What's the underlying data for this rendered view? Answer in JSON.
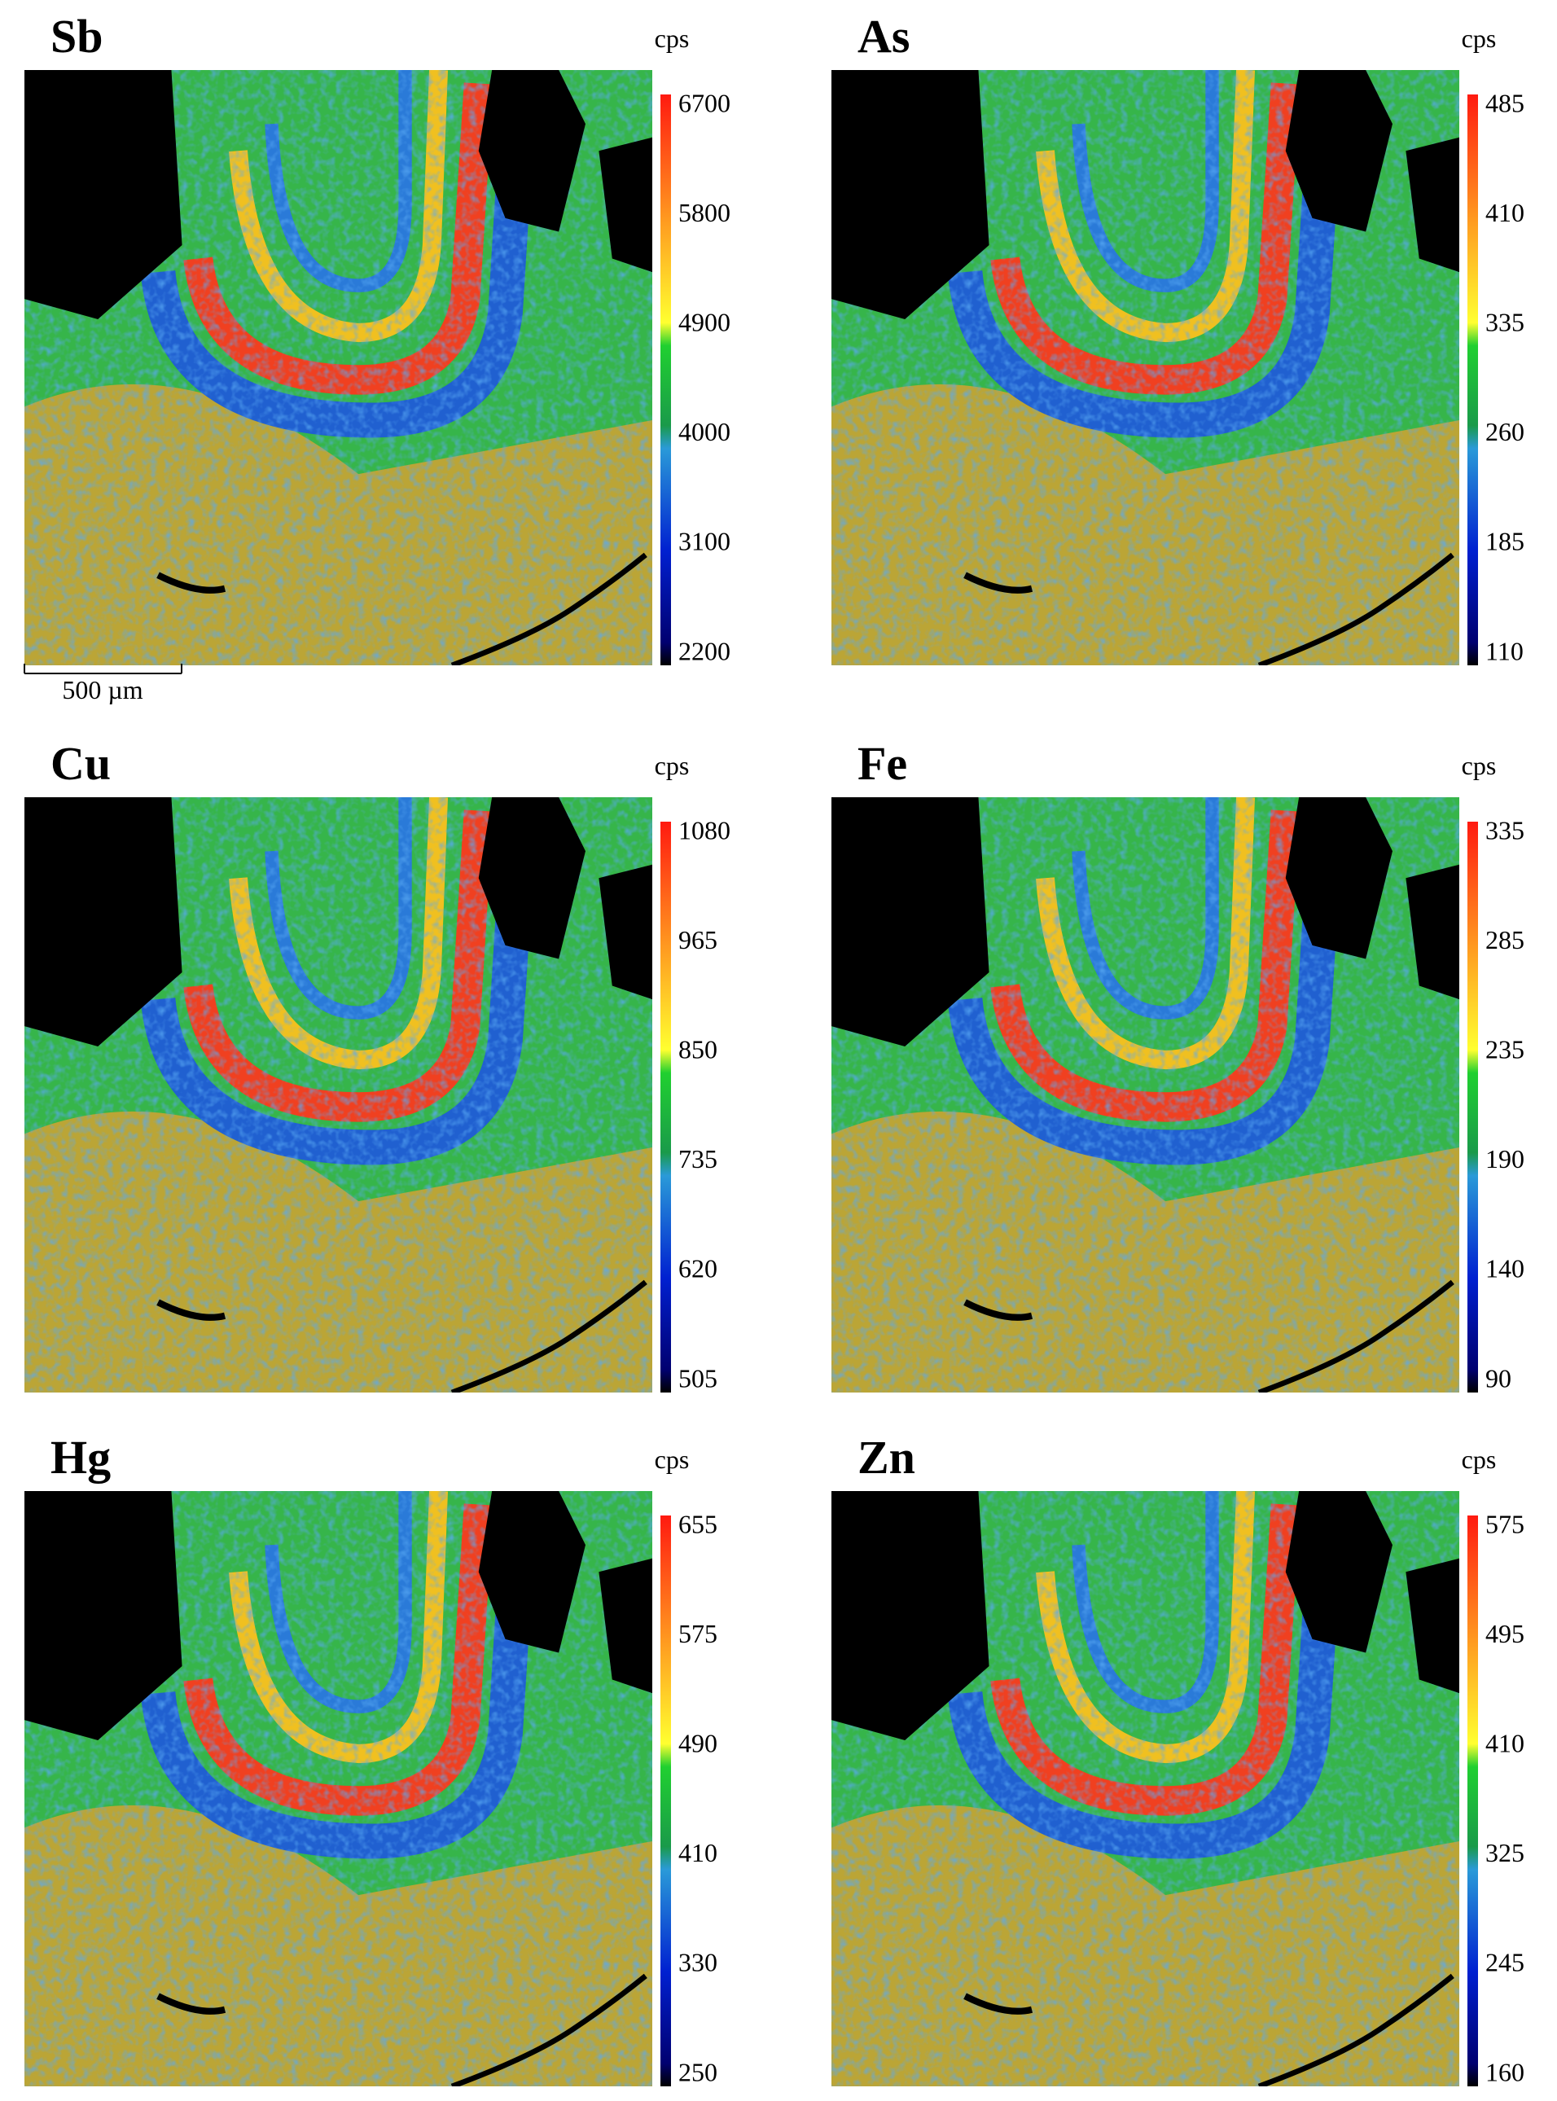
{
  "figure": {
    "panels": [
      {
        "title": "Sb",
        "unit": "cps",
        "ticks": [
          6700,
          5800,
          4900,
          4000,
          3100,
          2200
        ]
      },
      {
        "title": "As",
        "unit": "cps",
        "ticks": [
          485,
          410,
          335,
          260,
          185,
          110
        ]
      },
      {
        "title": "Cu",
        "unit": "cps",
        "ticks": [
          1080,
          965,
          850,
          735,
          620,
          505
        ]
      },
      {
        "title": "Fe",
        "unit": "cps",
        "ticks": [
          335,
          285,
          235,
          190,
          140,
          90
        ]
      },
      {
        "title": "Hg",
        "unit": "cps",
        "ticks": [
          655,
          575,
          490,
          410,
          330,
          250
        ]
      },
      {
        "title": "Zn",
        "unit": "cps",
        "ticks": [
          575,
          495,
          410,
          325,
          245,
          160
        ]
      }
    ],
    "scale_bar": "500 µm"
  }
}
